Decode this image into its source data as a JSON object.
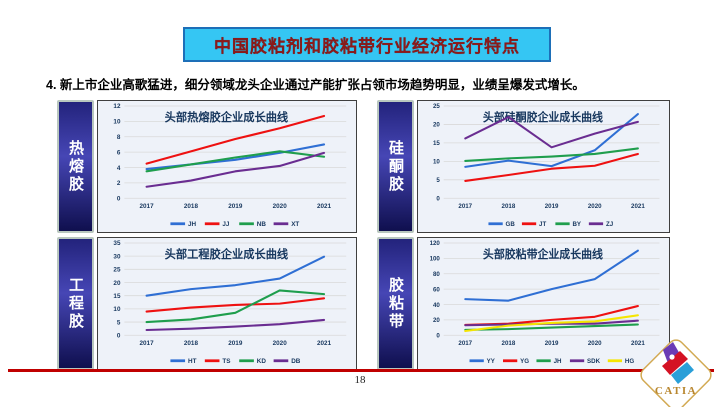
{
  "slide": {
    "title": "中国胶粘剂和胶粘带行业经济运行特点",
    "subtitle": "4.  新上市企业高歌猛进，细分领域龙头企业通过产能扩张占领市场趋势明显，业绩呈爆发式增长。",
    "page_number": "18",
    "logo_text": "CATIA"
  },
  "colors": {
    "title_bar_bg": "#35c6f3",
    "title_bar_border": "#1d6fb8",
    "title_text": "#8b1a1a",
    "axis_text": "#17375e",
    "gridline": "#d9d9d9",
    "chart_bg": "#eef2f9",
    "red_divider": "#c00000",
    "sidebar_top": "#23237c",
    "sidebar_mid": "#4646b5",
    "sidebar_bottom": "#0f0f4e",
    "logo_gold": "#c19237"
  },
  "chart_data": [
    {
      "type": "line",
      "side_label": "热熔胶",
      "title": "头部热熔胶企业成长曲线",
      "x": [
        "2017",
        "2018",
        "2019",
        "2020",
        "2021"
      ],
      "ylim": [
        0,
        12
      ],
      "ytick_step": 2,
      "grid": true,
      "legend_position": "bottom",
      "series": [
        {
          "name": "JH",
          "color": "#2f6fd4",
          "values": [
            3.8,
            4.4,
            5.0,
            5.9,
            7.0
          ]
        },
        {
          "name": "JJ",
          "color": "#ee1111",
          "values": [
            4.5,
            6.1,
            7.7,
            9.1,
            10.7
          ]
        },
        {
          "name": "NB",
          "color": "#1f9e4d",
          "values": [
            3.5,
            4.4,
            5.3,
            6.1,
            5.4
          ]
        },
        {
          "name": "XT",
          "color": "#6a2d91",
          "values": [
            1.5,
            2.3,
            3.5,
            4.2,
            5.9
          ]
        }
      ]
    },
    {
      "type": "line",
      "side_label": "硅酮胶",
      "title": "头部硅酮胶企业成长曲线",
      "x": [
        "2017",
        "2018",
        "2019",
        "2020",
        "2021"
      ],
      "ylim": [
        0,
        25
      ],
      "ytick_step": 5,
      "grid": true,
      "legend_position": "bottom",
      "series": [
        {
          "name": "GB",
          "color": "#2f6fd4",
          "values": [
            8.5,
            10.2,
            8.7,
            13.0,
            22.8
          ]
        },
        {
          "name": "JT",
          "color": "#ee1111",
          "values": [
            4.7,
            6.3,
            8.0,
            8.8,
            12.0
          ]
        },
        {
          "name": "BY",
          "color": "#1f9e4d",
          "values": [
            10.1,
            10.8,
            11.3,
            12.0,
            13.5
          ]
        },
        {
          "name": "ZJ",
          "color": "#6a2d91",
          "values": [
            16.2,
            22.0,
            13.8,
            17.5,
            20.7
          ]
        }
      ]
    },
    {
      "type": "line",
      "side_label": "工程胶",
      "title": "头部工程胶企业成长曲线",
      "x": [
        "2017",
        "2018",
        "2019",
        "2020",
        "2021"
      ],
      "ylim": [
        0,
        35
      ],
      "ytick_step": 5,
      "grid": true,
      "legend_position": "bottom",
      "series": [
        {
          "name": "HT",
          "color": "#2f6fd4",
          "values": [
            15.0,
            17.5,
            19.0,
            21.5,
            29.8
          ]
        },
        {
          "name": "TS",
          "color": "#ee1111",
          "values": [
            9.0,
            10.5,
            11.5,
            12.0,
            14.0
          ]
        },
        {
          "name": "KD",
          "color": "#1f9e4d",
          "values": [
            5.0,
            6.0,
            8.5,
            17.0,
            15.6
          ]
        },
        {
          "name": "DB",
          "color": "#6a2d91",
          "values": [
            2.0,
            2.5,
            3.3,
            4.2,
            5.8
          ]
        }
      ]
    },
    {
      "type": "line",
      "side_label": "胶粘带",
      "title": "头部胶粘带企业成长曲线",
      "x": [
        "2017",
        "2018",
        "2019",
        "2020",
        "2021"
      ],
      "ylim": [
        0,
        120
      ],
      "ytick_step": 20,
      "grid": true,
      "legend_position": "bottom",
      "series": [
        {
          "name": "YY",
          "color": "#2f6fd4",
          "values": [
            47,
            45,
            60,
            73,
            110
          ]
        },
        {
          "name": "YG",
          "color": "#ee1111",
          "values": [
            13.5,
            15,
            20,
            24,
            38
          ]
        },
        {
          "name": "JH",
          "color": "#1f9e4d",
          "values": [
            7,
            8,
            10,
            12,
            14
          ]
        },
        {
          "name": "SDK",
          "color": "#6a2d91",
          "values": [
            13,
            14,
            15,
            15,
            19
          ]
        },
        {
          "name": "HG",
          "color": "#f5e500",
          "values": [
            5.5,
            12.5,
            16,
            18,
            26
          ]
        }
      ]
    }
  ]
}
